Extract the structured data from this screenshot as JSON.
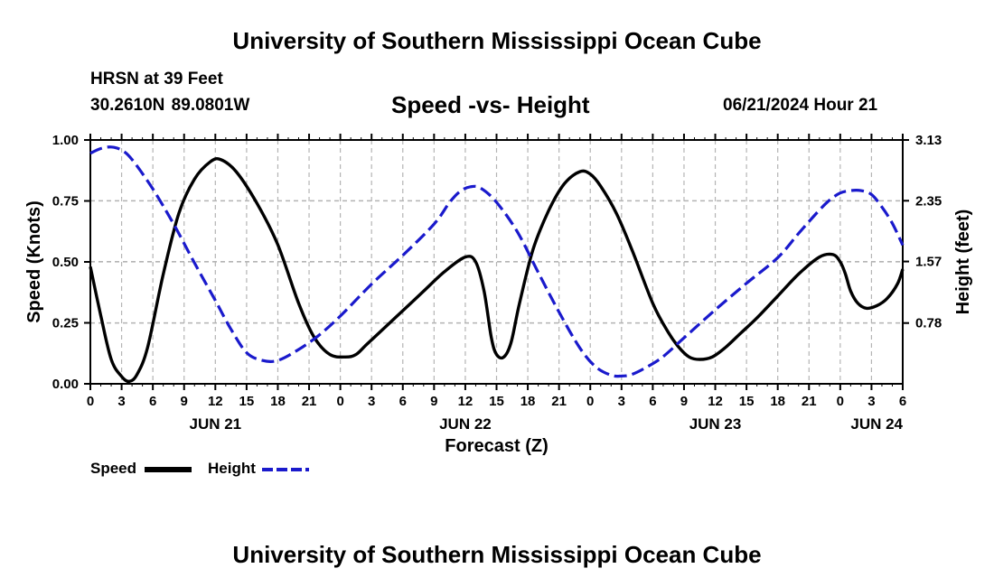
{
  "header": {
    "title": "University of Southern Mississippi Ocean Cube",
    "station": "HRSN at 39 Feet",
    "coords": "30.2610N  89.0801W",
    "subtitle": "Speed -vs- Height",
    "datetime": "06/21/2024 Hour 21"
  },
  "footer": {
    "title": "University of Southern Mississippi Ocean Cube"
  },
  "legend": {
    "speed_label": "Speed",
    "height_label": "Height"
  },
  "colors": {
    "speed": "#000000",
    "height": "#1a1acc",
    "grid": "#b4b4b4"
  },
  "chart_data": {
    "type": "line",
    "title": "Speed -vs- Height",
    "xlabel": "Forecast (Z)",
    "ylabel": "Speed (Knots)",
    "y2label": "Height (feet)",
    "xlim": [
      0,
      78
    ],
    "ylim": [
      0,
      1
    ],
    "y2lim": [
      0,
      3.13
    ],
    "x_ticks": [
      0,
      3,
      6,
      9,
      12,
      15,
      18,
      21,
      24,
      27,
      30,
      33,
      36,
      39,
      42,
      45,
      48,
      51,
      54,
      57,
      60,
      63,
      66,
      69,
      72,
      75,
      78
    ],
    "x_tick_labels": [
      "0",
      "3",
      "6",
      "9",
      "12",
      "15",
      "18",
      "21",
      "0",
      "3",
      "6",
      "9",
      "12",
      "15",
      "18",
      "21",
      "0",
      "3",
      "6",
      "9",
      "12",
      "15",
      "18",
      "21",
      "0",
      "3",
      "6"
    ],
    "day_labels": [
      {
        "x": 12,
        "label": "JUN 21"
      },
      {
        "x": 36,
        "label": "JUN 22"
      },
      {
        "x": 60,
        "label": "JUN 23"
      },
      {
        "x": 78,
        "label": "JUN 24"
      }
    ],
    "y_ticks": [
      0,
      0.25,
      0.5,
      0.75,
      1.0
    ],
    "y_tick_labels": [
      "0.00",
      "0.25",
      "0.50",
      "0.75",
      "1.00"
    ],
    "y2_ticks": [
      0.78,
      1.57,
      2.35,
      3.13
    ],
    "y2_tick_labels": [
      "0.78",
      "1.57",
      "2.35",
      "3.13"
    ],
    "series": [
      {
        "name": "Speed",
        "axis": "left",
        "style": "solid",
        "x": [
          0,
          1,
          2,
          3,
          3.75,
          4.5,
          5.5,
          7,
          8.5,
          10,
          11.5,
          12.5,
          14,
          16,
          18,
          20,
          21.5,
          23,
          24.5,
          25.5,
          26.5,
          28,
          30,
          32,
          34,
          36,
          37,
          37.8,
          38.5,
          39,
          39.7,
          40.4,
          41.2,
          42.5,
          44,
          45.5,
          47,
          48,
          49,
          50.5,
          52,
          54,
          55.5,
          56.5,
          57.5,
          58.5,
          59.7,
          61,
          62.5,
          64,
          66,
          68,
          70,
          71.3,
          72,
          72.5,
          73,
          73.7,
          74.5,
          75.5,
          76.5,
          77.5,
          78
        ],
        "values": [
          0.48,
          0.28,
          0.1,
          0.03,
          0.01,
          0.04,
          0.15,
          0.45,
          0.7,
          0.84,
          0.91,
          0.92,
          0.87,
          0.74,
          0.57,
          0.33,
          0.19,
          0.12,
          0.11,
          0.12,
          0.16,
          0.22,
          0.3,
          0.38,
          0.46,
          0.52,
          0.5,
          0.38,
          0.19,
          0.12,
          0.11,
          0.17,
          0.33,
          0.55,
          0.71,
          0.82,
          0.87,
          0.86,
          0.81,
          0.7,
          0.55,
          0.33,
          0.21,
          0.15,
          0.11,
          0.1,
          0.11,
          0.15,
          0.21,
          0.27,
          0.36,
          0.45,
          0.52,
          0.53,
          0.5,
          0.45,
          0.38,
          0.33,
          0.31,
          0.32,
          0.35,
          0.41,
          0.47
        ]
      },
      {
        "name": "Height",
        "axis": "right",
        "style": "dashed",
        "x": [
          0,
          1,
          2,
          3,
          4,
          6,
          8,
          10,
          12,
          13.5,
          15,
          16.5,
          18,
          20,
          22,
          24,
          27,
          30,
          33,
          34.5,
          35.5,
          36.5,
          37.5,
          39,
          41,
          43,
          45,
          47,
          48.5,
          50,
          51,
          52,
          53.5,
          55,
          57,
          60,
          63,
          66,
          68,
          70,
          71,
          72,
          73,
          74,
          75,
          76,
          77,
          78
        ],
        "values": [
          2.96,
          3.02,
          3.04,
          3.0,
          2.88,
          2.5,
          2.05,
          1.55,
          1.07,
          0.7,
          0.4,
          0.3,
          0.3,
          0.44,
          0.63,
          0.87,
          1.28,
          1.65,
          2.05,
          2.33,
          2.47,
          2.53,
          2.51,
          2.33,
          1.95,
          1.43,
          0.92,
          0.46,
          0.22,
          0.11,
          0.1,
          0.12,
          0.22,
          0.35,
          0.59,
          0.95,
          1.29,
          1.62,
          1.93,
          2.23,
          2.36,
          2.45,
          2.48,
          2.48,
          2.43,
          2.27,
          2.06,
          1.78
        ]
      }
    ]
  }
}
